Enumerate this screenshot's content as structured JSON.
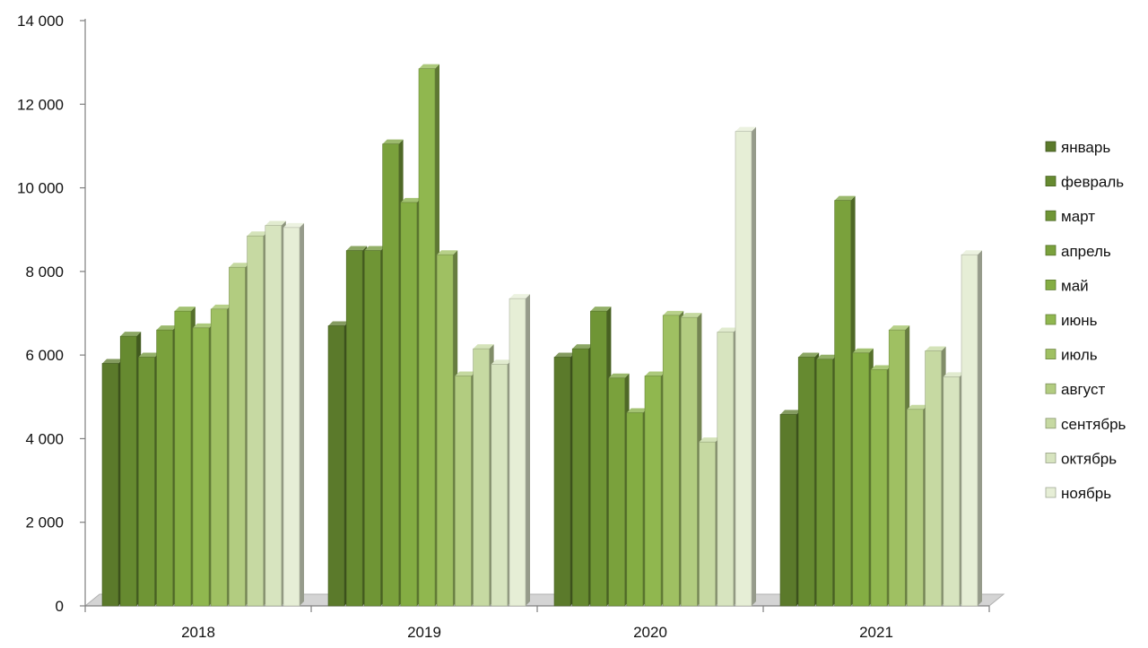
{
  "chart_data": {
    "type": "bar",
    "title": "",
    "xlabel": "",
    "ylabel": "",
    "ylim": [
      0,
      14000
    ],
    "yticks": [
      0,
      2000,
      4000,
      6000,
      8000,
      10000,
      12000,
      14000
    ],
    "ytick_labels": [
      "0",
      "2 000",
      "4 000",
      "6 000",
      "8 000",
      "10 000",
      "12 000",
      "14 000"
    ],
    "categories": [
      "2018",
      "2019",
      "2020",
      "2021"
    ],
    "grid": false,
    "legend_position": "right",
    "series": [
      {
        "name": "январь",
        "color": "#5b7a2b",
        "values": [
          5800,
          6700,
          5950,
          4580
        ]
      },
      {
        "name": "февраль",
        "color": "#668a30",
        "values": [
          6450,
          8500,
          6150,
          5950
        ]
      },
      {
        "name": "март",
        "color": "#6f9535",
        "values": [
          5950,
          8500,
          7050,
          5900
        ]
      },
      {
        "name": "апрель",
        "color": "#7aa13c",
        "values": [
          6600,
          11050,
          5450,
          9700
        ]
      },
      {
        "name": "май",
        "color": "#84ad43",
        "values": [
          7050,
          9650,
          4620,
          6050
        ]
      },
      {
        "name": "июнь",
        "color": "#90b74f",
        "values": [
          6650,
          12850,
          5500,
          5650
        ]
      },
      {
        "name": "июль",
        "color": "#9fc062",
        "values": [
          7100,
          8400,
          6950,
          6600
        ]
      },
      {
        "name": "август",
        "color": "#b2cc80",
        "values": [
          8100,
          5500,
          6900,
          4700
        ]
      },
      {
        "name": "сентябрь",
        "color": "#c6d9a2",
        "values": [
          8850,
          6150,
          3920,
          6100
        ]
      },
      {
        "name": "октябрь",
        "color": "#d7e4bf",
        "values": [
          9100,
          5780,
          6550,
          5480
        ]
      },
      {
        "name": "ноябрь",
        "color": "#e6eed6",
        "values": [
          9050,
          7350,
          11350,
          8400
        ]
      }
    ]
  }
}
